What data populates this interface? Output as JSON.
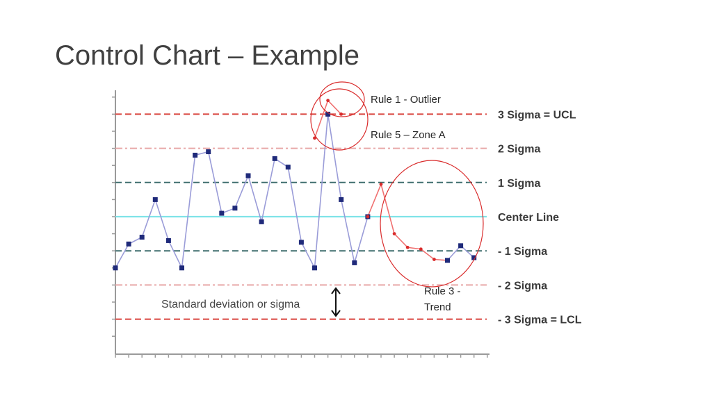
{
  "slide": {
    "title": "Control Chart – Example"
  },
  "callouts": {
    "rule1": "Rule 1 - Outlier",
    "rule5": "Rule 5 – Zone A",
    "rule3_line1": "Rule 3 -",
    "rule3_line2": "Trend"
  },
  "chart_data": {
    "type": "line",
    "title": "",
    "xlabel": "",
    "ylabel": "",
    "ylim": [
      -3.6,
      3.6
    ],
    "grid": false,
    "control_lines": [
      {
        "name": "3 Sigma = UCL",
        "value": 3,
        "color": "#d9443f",
        "style": "dashed"
      },
      {
        "name": "2 Sigma",
        "value": 2,
        "color": "#e8a8a8",
        "style": "dashdot"
      },
      {
        "name": "1 Sigma",
        "value": 1,
        "color": "#3f6e6e",
        "style": "dashed"
      },
      {
        "name": "Center Line",
        "value": 0,
        "color": "#7fe3e8",
        "style": "solid"
      },
      {
        "name": "- 1 Sigma",
        "value": -1,
        "color": "#3f6e6e",
        "style": "dashed"
      },
      {
        "name": "- 2 Sigma",
        "value": -2,
        "color": "#e8a8a8",
        "style": "dashdot"
      },
      {
        "name": "- 3 Sigma = LCL",
        "value": -3,
        "color": "#d9443f",
        "style": "dashed"
      }
    ],
    "series": [
      {
        "color": "#1f2a7a",
        "line_color": "#9a9cd8",
        "x": [
          1,
          2,
          3,
          4,
          5,
          6,
          7,
          8,
          9,
          10,
          11,
          12,
          13,
          14,
          15,
          16,
          17,
          18,
          19,
          20
        ],
        "y": [
          -1.5,
          -0.8,
          -0.6,
          0.5,
          -0.7,
          -1.5,
          1.8,
          1.9,
          0.1,
          0.25,
          1.2,
          -0.15,
          1.7,
          1.45,
          -0.75,
          -1.5,
          3.0,
          0.5,
          -1.35,
          0.0
        ]
      },
      {
        "color": "#d92b2b",
        "line_color": "#f07070",
        "x": [
          16,
          17,
          18
        ],
        "y": [
          2.3,
          3.4,
          3.0
        ]
      },
      {
        "color": "#d92b2b",
        "line_color": "#f07070",
        "x": [
          20,
          21,
          22,
          23,
          24,
          25,
          26
        ],
        "y": [
          0.0,
          0.95,
          -0.5,
          -0.9,
          -0.95,
          -1.25,
          -1.28
        ]
      },
      {
        "color": "#1f2a7a",
        "line_color": "#9a9cd8",
        "x": [
          26,
          27,
          28
        ],
        "y": [
          -1.28,
          -0.85,
          -1.2
        ]
      }
    ],
    "annotations": [
      {
        "text": "Standard deviation or sigma"
      }
    ]
  }
}
